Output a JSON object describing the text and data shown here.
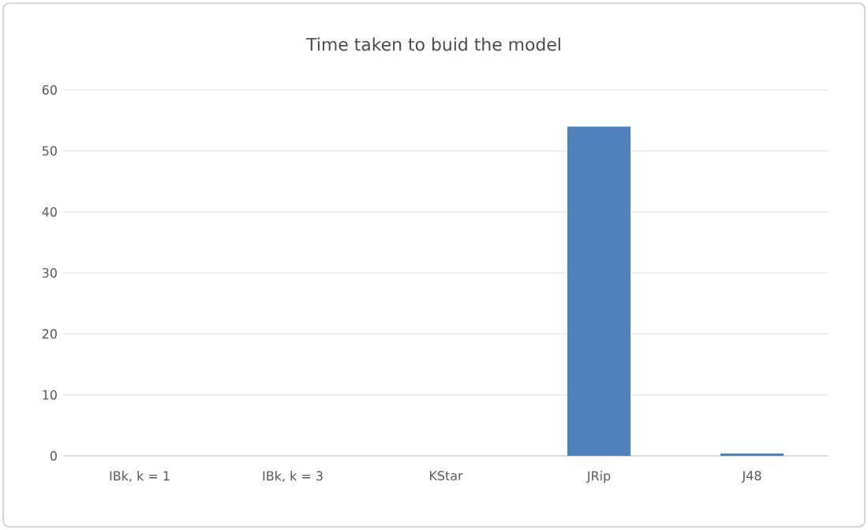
{
  "chart_data": {
    "type": "bar",
    "title": "Time taken to buid the model",
    "categories": [
      "IBk, k = 1",
      "IBk, k = 3",
      "KStar",
      "JRip",
      "J48"
    ],
    "values": [
      0,
      0,
      0,
      54,
      0.4
    ],
    "color": "#4f81bd",
    "ylim": [
      0,
      60
    ],
    "yticks": [
      0,
      10,
      20,
      30,
      40,
      50,
      60
    ],
    "grid": "y"
  }
}
